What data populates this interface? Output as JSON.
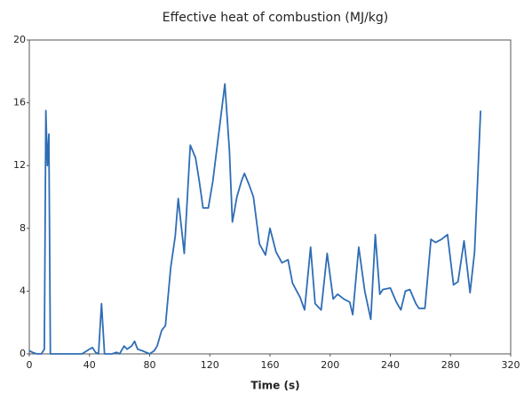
{
  "chart_data": {
    "type": "line",
    "title": "Effective heat of combustion (MJ/kg)",
    "x_label": "Time (s)",
    "xlim": [
      0,
      320
    ],
    "xticks": [
      0,
      40,
      80,
      120,
      160,
      200,
      240,
      280,
      320
    ],
    "ylim": [
      0,
      20
    ],
    "yticks": [
      0,
      4,
      8,
      12,
      16,
      20
    ],
    "grid": false,
    "x": [
      0,
      2,
      5,
      8,
      10,
      11,
      12,
      13,
      14,
      16,
      20,
      25,
      30,
      35,
      40,
      42,
      44,
      46,
      48,
      50,
      55,
      58,
      60,
      63,
      65,
      68,
      70,
      72,
      75,
      80,
      83,
      85,
      88,
      90.5,
      94,
      97,
      99,
      103,
      107,
      110.5,
      113,
      115.5,
      119,
      122,
      130,
      133,
      135,
      138,
      141,
      143,
      146,
      149,
      151,
      153,
      157,
      160,
      164,
      168,
      172,
      175,
      180,
      183,
      187,
      190,
      194,
      198,
      202,
      205,
      209,
      213,
      215,
      219,
      223,
      227,
      230,
      233,
      235,
      240,
      244,
      247,
      250,
      253,
      257,
      259,
      263,
      267,
      270,
      274,
      278,
      282,
      285,
      289,
      293,
      296,
      300
    ],
    "series": [
      {
        "name": "Effective heat of combustion",
        "color": "#2f6db5",
        "values": [
          0.2,
          0.1,
          0,
          0,
          0.3,
          15.5,
          12,
          14,
          0,
          0,
          0,
          0,
          0,
          0,
          0.3,
          0.4,
          0.1,
          0,
          3.2,
          0,
          0,
          0.1,
          0,
          0.5,
          0.3,
          0.5,
          0.8,
          0.3,
          0.2,
          0,
          0.2,
          0.5,
          1.5,
          1.8,
          5.5,
          7.5,
          9.9,
          6.4,
          13.3,
          12.5,
          11,
          9.3,
          9.3,
          11,
          17.2,
          13,
          8.4,
          10,
          11,
          11.5,
          10.8,
          10,
          8.5,
          7,
          6.3,
          8,
          6.5,
          5.8,
          6,
          4.5,
          3.6,
          2.8,
          6.8,
          3.2,
          2.8,
          6.4,
          3.5,
          3.8,
          3.5,
          3.3,
          2.5,
          6.8,
          4,
          2.2,
          7.6,
          3.8,
          4.1,
          4.2,
          3.3,
          2.8,
          4,
          4.1,
          3.2,
          2.9,
          2.9,
          7.3,
          7.1,
          7.3,
          7.6,
          4.4,
          4.6,
          7.2,
          3.9,
          6.5,
          15.5
        ]
      }
    ]
  }
}
